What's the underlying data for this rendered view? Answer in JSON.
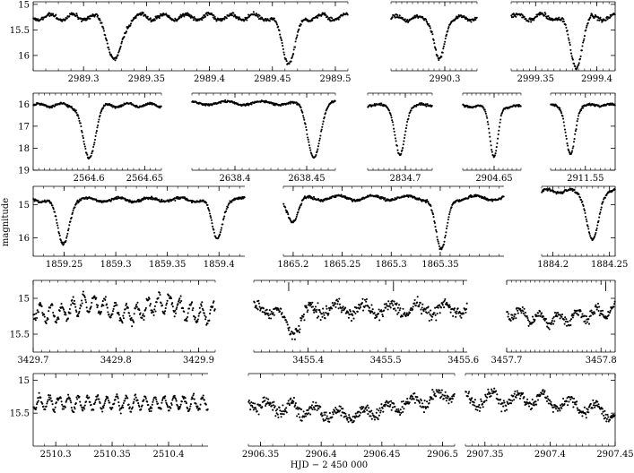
{
  "chart_data": {
    "type": "scatter",
    "xlabel": "HJD − 2 450 000",
    "ylabel": "magnitude",
    "y_inverted": true,
    "rows": [
      {
        "ylim": [
          14.95,
          16.3
        ],
        "yticks": [
          "15",
          "15.5",
          "16"
        ],
        "ytick_values": [
          15,
          15.5,
          16
        ],
        "panels": [
          {
            "xlim": [
              2989.26,
              2989.51
            ],
            "xticks": [
              "2989.3",
              "2989.35",
              "2989.4",
              "2989.45",
              "2989.5"
            ],
            "xtick_values": [
              2989.3,
              2989.35,
              2989.4,
              2989.45,
              2989.5
            ],
            "base": 15.25,
            "noise": 0.035,
            "waves": [
              {
                "amp": 0.06,
                "per": 0.018
              }
            ],
            "eclipses": [
              {
                "x": 2989.325,
                "depth": 0.85,
                "width": 0.0055
              },
              {
                "x": 2989.463,
                "depth": 0.85,
                "width": 0.0055
              }
            ]
          },
          {
            "xlim": [
              2990.25,
              2990.33
            ],
            "xticks": [
              "2990.3"
            ],
            "xtick_values": [
              2990.3
            ],
            "base": 15.27,
            "noise": 0.035,
            "waves": [
              {
                "amp": 0.05,
                "per": 0.02
              }
            ],
            "eclipses": [
              {
                "x": 2990.295,
                "depth": 0.85,
                "width": 0.0045
              }
            ]
          },
          {
            "xlim": [
              2999.33,
              2999.415
            ],
            "xticks": [
              "2999.35",
              "2999.4"
            ],
            "xtick_values": [
              2999.35,
              2999.4
            ],
            "base": 15.25,
            "noise": 0.04,
            "waves": [
              {
                "amp": 0.06,
                "per": 0.02
              }
            ],
            "eclipses": [
              {
                "x": 2999.383,
                "depth": 0.95,
                "width": 0.005
              }
            ]
          }
        ]
      },
      {
        "ylim": [
          15.5,
          19.0
        ],
        "yticks": [
          "16",
          "17",
          "18",
          "19"
        ],
        "ytick_values": [
          16,
          17,
          18,
          19
        ],
        "panels": [
          {
            "xlim": [
              2564.55,
              2564.665
            ],
            "xticks": [
              "2564.6",
              "2564.65"
            ],
            "xtick_values": [
              2564.6,
              2564.65
            ],
            "base": 16.05,
            "noise": 0.05,
            "waves": [
              {
                "amp": 0.08,
                "per": 0.02
              }
            ],
            "eclipses": [
              {
                "x": 2564.6,
                "depth": 2.4,
                "width": 0.0055
              }
            ]
          },
          {
            "xlim": [
              2638.37,
              2638.47
            ],
            "xticks": [
              "2638.4",
              "2638.45"
            ],
            "xtick_values": [
              2638.4,
              2638.45
            ],
            "base": 15.95,
            "noise": 0.05,
            "waves": [
              {
                "amp": 0.08,
                "per": 0.025
              }
            ],
            "eclipses": [
              {
                "x": 2638.455,
                "depth": 2.4,
                "width": 0.0045
              }
            ]
          },
          {
            "xlim": [
              2834.665,
              2834.725
            ],
            "xticks": [
              "2834.7"
            ],
            "xtick_values": [
              2834.7
            ],
            "base": 16.05,
            "noise": 0.05,
            "waves": [
              {
                "amp": 0.05,
                "per": 0.02
              }
            ],
            "eclipses": [
              {
                "x": 2834.695,
                "depth": 2.3,
                "width": 0.0045
              }
            ]
          },
          {
            "xlim": [
              2904.615,
              2904.68
            ],
            "xticks": [
              "2904.65"
            ],
            "xtick_values": [
              2904.65
            ],
            "base": 16.1,
            "noise": 0.05,
            "waves": [
              {
                "amp": 0.05,
                "per": 0.02
              }
            ],
            "eclipses": [
              {
                "x": 2904.65,
                "depth": 2.3,
                "width": 0.0045
              }
            ]
          },
          {
            "xlim": [
              2911.515,
              2911.58
            ],
            "xticks": [
              "2911.55"
            ],
            "xtick_values": [
              2911.55
            ],
            "base": 16.05,
            "noise": 0.05,
            "waves": [
              {
                "amp": 0.05,
                "per": 0.02
              }
            ],
            "eclipses": [
              {
                "x": 2911.535,
                "depth": 2.3,
                "width": 0.0045
              }
            ]
          }
        ]
      },
      {
        "ylim": [
          14.45,
          16.55
        ],
        "yticks": [
          "15",
          "16"
        ],
        "ytick_values": [
          15,
          16
        ],
        "panels": [
          {
            "xlim": [
              1859.22,
              1859.425
            ],
            "xticks": [
              "1859.25",
              "1859.3",
              "1859.35",
              "1859.4"
            ],
            "xtick_values": [
              1859.25,
              1859.3,
              1859.35,
              1859.4
            ],
            "base": 14.85,
            "noise": 0.04,
            "waves": [
              {
                "amp": 0.06,
                "per": 0.03
              }
            ],
            "eclipses": [
              {
                "x": 1859.249,
                "depth": 1.35,
                "width": 0.0055
              },
              {
                "x": 1859.398,
                "depth": 1.2,
                "width": 0.005
              }
            ]
          },
          {
            "xlim": [
              1865.19,
              1865.415
            ],
            "xticks": [
              "1865.2",
              "1865.25",
              "1865.3",
              "1865.35"
            ],
            "xtick_values": [
              1865.2,
              1865.25,
              1865.3,
              1865.35
            ],
            "base": 14.8,
            "noise": 0.04,
            "waves": [
              {
                "amp": 0.07,
                "per": 0.035
              }
            ],
            "eclipses": [
              {
                "x": 1865.2,
                "depth": 0.7,
                "width": 0.0055
              },
              {
                "x": 1865.351,
                "depth": 1.6,
                "width": 0.0055
              }
            ]
          },
          {
            "xlim": [
              1884.19,
              1884.255
            ],
            "xticks": [
              "1884.2",
              "1884.25"
            ],
            "xtick_values": [
              1884.2,
              1884.25
            ],
            "base": 14.6,
            "noise": 0.04,
            "waves": [
              {
                "amp": 0.05,
                "per": 0.02
              }
            ],
            "eclipses": [
              {
                "x": 1884.235,
                "depth": 1.5,
                "width": 0.005
              }
            ]
          }
        ]
      },
      {
        "ylim": [
          14.75,
          15.75
        ],
        "yticks": [
          "15",
          "15.5"
        ],
        "ytick_values": [
          15,
          15.5
        ],
        "panels": [
          {
            "xlim": [
              3429.7,
              3429.92
            ],
            "xticks": [
              "3429.7",
              "3429.8",
              "3429.9"
            ],
            "xtick_values": [
              3429.7,
              3429.8,
              3429.9
            ],
            "base": 15.15,
            "noise": 0.06,
            "waves": [
              {
                "amp": 0.12,
                "per": 0.013
              },
              {
                "amp": 0.08,
                "per": 0.09
              }
            ],
            "eclipses": [],
            "markers": []
          },
          {
            "xlim": [
              3455.33,
              3455.605
            ],
            "xticks": [
              "3455.4",
              "3455.5",
              "3455.6"
            ],
            "xtick_values": [
              3455.4,
              3455.5,
              3455.6
            ],
            "base": 15.15,
            "noise": 0.08,
            "waves": [
              {
                "amp": 0.08,
                "per": 0.035
              }
            ],
            "eclipses": [
              {
                "x": 3455.38,
                "depth": 0.3,
                "width": 0.01
              }
            ],
            "markers": [
              3455.375,
              3455.51
            ]
          },
          {
            "xlim": [
              3457.7,
              3457.815
            ],
            "xticks": [
              "3457.7",
              "3457.8"
            ],
            "xtick_values": [
              3457.7,
              3457.8
            ],
            "base": 15.15,
            "noise": 0.06,
            "waves": [
              {
                "amp": 0.08,
                "per": 0.02
              }
            ],
            "eclipses": [
              {
                "x": 3457.75,
                "depth": 0.15,
                "width": 0.03
              }
            ],
            "markers": [
              3457.805
            ]
          }
        ]
      },
      {
        "ylim": [
          14.9,
          16.0
        ],
        "yticks": [
          "15",
          "15.5"
        ],
        "ytick_values": [
          15,
          15.5
        ],
        "panels": [
          {
            "xlim": [
              2510.28,
              2510.435
            ],
            "xticks": [
              "2510.3",
              "2510.35",
              "2510.4"
            ],
            "xtick_values": [
              2510.3,
              2510.35,
              2510.4
            ],
            "base": 15.35,
            "noise": 0.05,
            "waves": [
              {
                "amp": 0.1,
                "per": 0.0085
              }
            ],
            "eclipses": []
          },
          {
            "xlim": [
              2906.34,
              2906.51
            ],
            "xticks": [
              "2906.35",
              "2906.4",
              "2906.45",
              "2906.5"
            ],
            "xtick_values": [
              2906.35,
              2906.4,
              2906.45,
              2906.5
            ],
            "base": 15.45,
            "noise": 0.09,
            "waves": [
              {
                "amp": 0.08,
                "per": 0.02
              }
            ],
            "eclipses": [],
            "trend": [
              15.35,
              15.55,
              15.2
            ]
          },
          {
            "xlim": [
              2907.335,
              2907.45
            ],
            "xticks": [
              "2907.35",
              "2907.4",
              "2907.45"
            ],
            "xtick_values": [
              2907.35,
              2907.4,
              2907.45
            ],
            "base": 15.4,
            "noise": 0.08,
            "waves": [
              {
                "amp": 0.1,
                "per": 0.02
              }
            ],
            "eclipses": [],
            "trend": [
              15.3,
              15.3,
              15.5
            ]
          }
        ]
      }
    ]
  }
}
